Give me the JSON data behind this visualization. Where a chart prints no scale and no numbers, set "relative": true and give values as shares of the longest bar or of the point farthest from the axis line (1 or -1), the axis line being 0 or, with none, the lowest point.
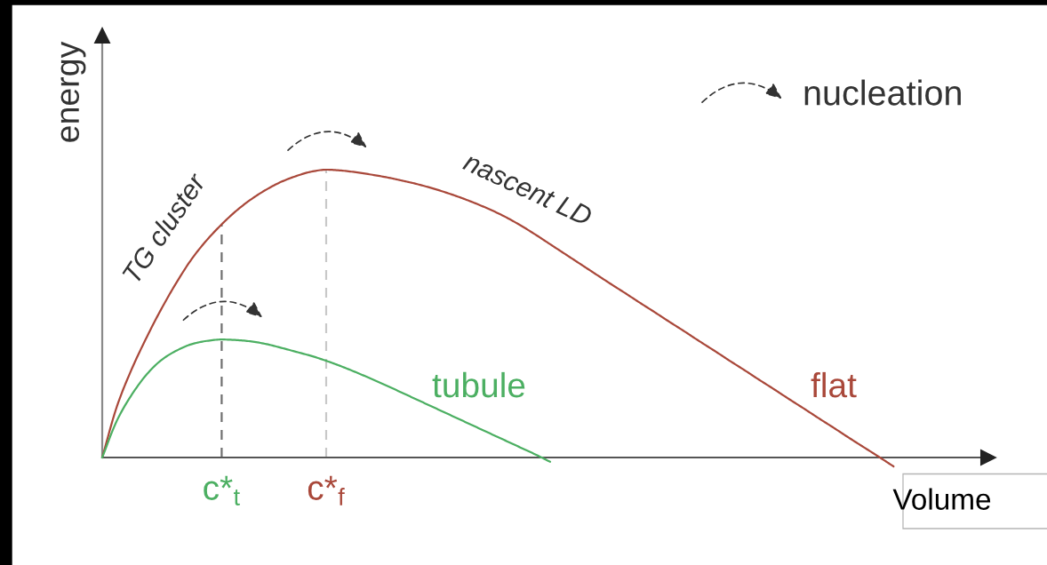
{
  "chart_data": {
    "type": "line",
    "ylabel": "energy",
    "xlabel": "Volume",
    "annotations": [
      "TG cluster",
      "nascent LD",
      "nucleation"
    ],
    "categories": [
      null,
      null,
      null,
      null,
      null,
      null,
      null,
      null,
      "c*$_{t}$",
      null,
      null,
      null,
      null,
      null,
      null,
      "c*$_{f}$",
      null,
      null,
      null,
      null,
      null,
      null,
      null,
      null,
      null,
      null,
      null,
      null,
      null,
      null,
      null,
      null,
      null,
      null,
      null,
      null,
      null,
      null,
      null,
      null,
      null,
      null,
      null,
      null,
      null,
      null,
      null,
      null,
      null,
      null,
      null,
      null,
      null,
      null,
      null,
      null,
      null,
      null,
      null,
      null
    ],
    "series": [
      {
        "name": "flat",
        "color": "#a9483a",
        "values": [
          0,
          0.18,
          0.31,
          0.42,
          0.52,
          0.61,
          0.69,
          0.755,
          0.81,
          0.858,
          0.898,
          0.931,
          0.958,
          0.978,
          0.993,
          1,
          0.997,
          0.991,
          0.983,
          0.974,
          0.963,
          0.951,
          0.937,
          0.921,
          0.903,
          0.883,
          0.861,
          0.836,
          0.807,
          0.775,
          0.741,
          0.707,
          0.673,
          0.639,
          0.605,
          0.572,
          0.538,
          0.505,
          0.471,
          0.438,
          0.404,
          0.371,
          0.337,
          0.304,
          0.27,
          0.237,
          0.203,
          0.17,
          0.136,
          0.103,
          0.069,
          0.036,
          0.003,
          -0.031,
          null,
          null,
          null,
          null,
          null,
          null
        ]
      },
      {
        "name": "tubule",
        "color": "#4caf62",
        "values": [
          0,
          0.13,
          0.22,
          0.29,
          0.34,
          0.372,
          0.394,
          0.405,
          0.41,
          0.408,
          0.403,
          0.394,
          0.381,
          0.367,
          0.353,
          0.336,
          0.317,
          0.296,
          0.274,
          0.251,
          0.227,
          0.203,
          0.179,
          0.155,
          0.131,
          0.107,
          0.083,
          0.059,
          0.035,
          0.011,
          -0.015,
          null,
          null,
          null,
          null,
          null,
          null,
          null,
          null,
          null,
          null,
          null,
          null,
          null,
          null,
          null,
          null,
          null,
          null,
          null,
          null,
          null,
          null,
          null,
          null,
          null,
          null,
          null,
          null,
          null
        ]
      }
    ],
    "relative": true,
    "ref_lines": [
      {
        "axis": "x",
        "value": "c*$_{t}$",
        "color": "#707070",
        "line_style": "dashed"
      },
      {
        "axis": "x",
        "value": "c*$_{f}$",
        "color": "#c8c8c8",
        "line_style": "dashed"
      }
    ],
    "tick_labels": "x"
  }
}
